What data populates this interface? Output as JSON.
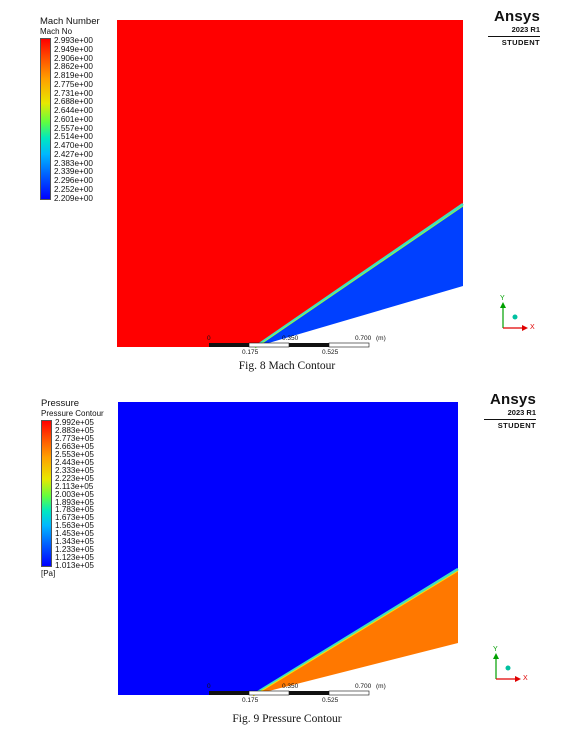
{
  "figures": [
    {
      "id": "mach",
      "legend_title": "Mach Number",
      "legend_subtitle": "Mach No",
      "legend_values": [
        "2.993e+00",
        "2.949e+00",
        "2.906e+00",
        "2.862e+00",
        "2.819e+00",
        "2.775e+00",
        "2.731e+00",
        "2.688e+00",
        "2.644e+00",
        "2.601e+00",
        "2.557e+00",
        "2.514e+00",
        "2.470e+00",
        "2.427e+00",
        "2.383e+00",
        "2.339e+00",
        "2.296e+00",
        "2.252e+00",
        "2.209e+00"
      ],
      "unit": "",
      "field_colors": {
        "upstream": "#ff0000",
        "downstream": "#0040ff",
        "shock": "#40e0c0"
      },
      "scale_top": [
        "0",
        "0.350",
        "0.700",
        "(m)"
      ],
      "scale_bottom": [
        "0.175",
        "0.525"
      ],
      "caption": "Fig. 8  Mach Contour"
    },
    {
      "id": "pressure",
      "legend_title": "Pressure",
      "legend_subtitle": "Pressure Contour",
      "legend_values": [
        "2.992e+05",
        "2.883e+05",
        "2.773e+05",
        "2.663e+05",
        "2.553e+05",
        "2.443e+05",
        "2.333e+05",
        "2.223e+05",
        "2.113e+05",
        "2.003e+05",
        "1.893e+05",
        "1.783e+05",
        "1.673e+05",
        "1.563e+05",
        "1.453e+05",
        "1.343e+05",
        "1.233e+05",
        "1.123e+05",
        "1.013e+05"
      ],
      "unit": "[Pa]",
      "field_colors": {
        "upstream": "#0000ff",
        "downstream": "#ff7800",
        "shock": "#40e0c0"
      },
      "scale_top": [
        "0",
        "0.350",
        "0.700",
        "(m)"
      ],
      "scale_bottom": [
        "0.175",
        "0.525"
      ],
      "caption": "Fig. 9  Pressure Contour"
    }
  ],
  "brand": {
    "name": "Ansys",
    "version": "2023 R1",
    "edition": "STUDENT"
  },
  "triad": {
    "x_label": "X",
    "y_label": "Y",
    "x_color": "#e00000",
    "y_color": "#00a000",
    "z_color": "#00c0a0"
  }
}
